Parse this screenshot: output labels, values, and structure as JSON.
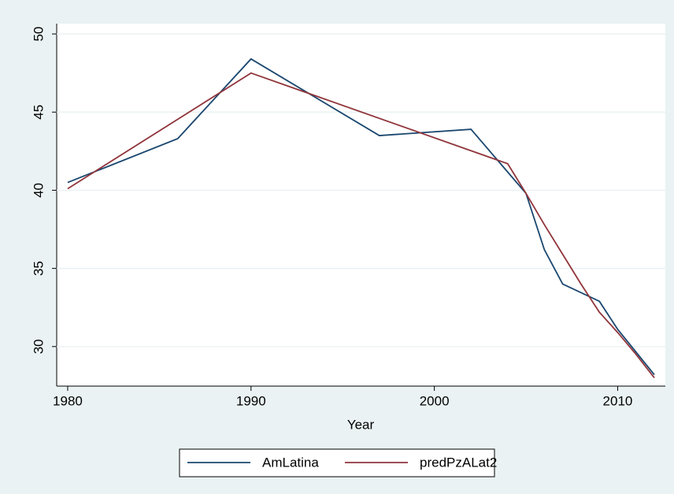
{
  "chart_data": {
    "type": "line",
    "x_label": "Year",
    "series": [
      {
        "name": "AmLatina",
        "color": "#1a476f",
        "x": [
          1980,
          1986,
          1990,
          1997,
          2002,
          2005,
          2006,
          2007,
          2009,
          2010,
          2012
        ],
        "values": [
          40.5,
          43.3,
          48.4,
          43.5,
          43.9,
          39.8,
          36.2,
          34.0,
          32.9,
          31.1,
          28.2
        ]
      },
      {
        "name": "predPzALat2",
        "color": "#90353b",
        "x": [
          1980,
          1990,
          2004,
          2005,
          2006,
          2007,
          2008,
          2009,
          2010,
          2011,
          2012
        ],
        "values": [
          40.1,
          47.5,
          41.7,
          39.8,
          37.8,
          35.9,
          34.0,
          32.2,
          30.9,
          29.5,
          28.0
        ]
      }
    ],
    "xlim": [
      1979.4,
      2012.6
    ],
    "xticks": [
      1980,
      1990,
      2000,
      2010
    ],
    "ylim": [
      27.47,
      50.66
    ],
    "yticks": [
      30,
      35,
      40,
      45,
      50
    ],
    "grid": true,
    "legend": "bottom"
  }
}
